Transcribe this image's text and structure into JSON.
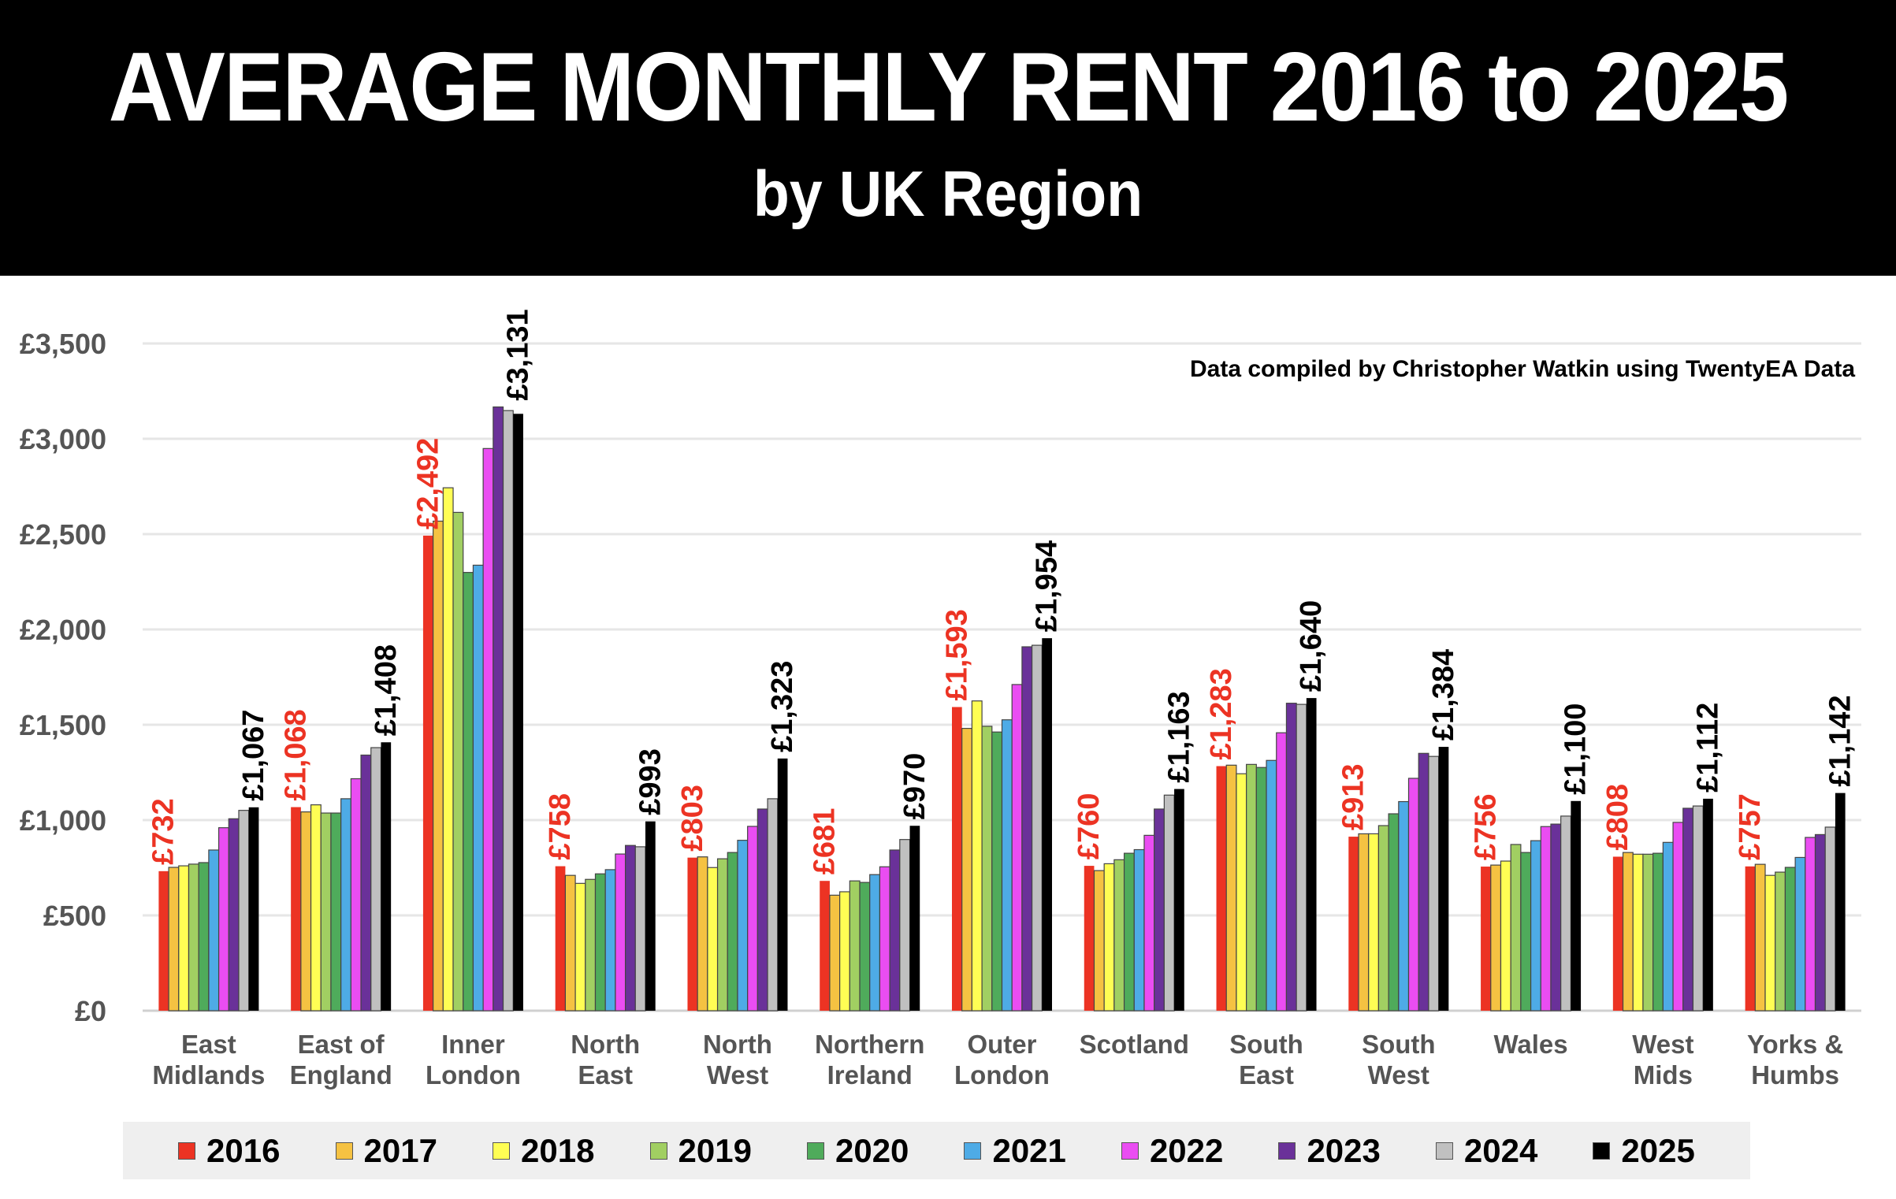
{
  "header": {
    "title": "AVERAGE MONTHLY RENT 2016 to 2025",
    "subtitle": "by UK Region"
  },
  "chart_data": {
    "type": "bar",
    "title": "AVERAGE MONTHLY RENT 2016 to 2025",
    "subtitle": "by UK Region",
    "annotation": "Data compiled by Christopher Watkin using TwentyEA Data",
    "xlabel": "",
    "ylabel": "",
    "ylim": [
      0,
      3500
    ],
    "yticks": [
      "£0",
      "£500",
      "£1,000",
      "£1,500",
      "£2,000",
      "£2,500",
      "£3,000",
      "£3,500"
    ],
    "ytick_values": [
      0,
      500,
      1000,
      1500,
      2000,
      2500,
      3000,
      3500
    ],
    "grid": true,
    "legend": "bottom",
    "categories": [
      [
        "East",
        "Midlands"
      ],
      [
        "East of",
        "England"
      ],
      [
        "Inner",
        "London"
      ],
      [
        "North",
        "East"
      ],
      [
        "North",
        "West"
      ],
      [
        "Northern",
        "Ireland"
      ],
      [
        "Outer",
        "London"
      ],
      [
        "Scotland",
        ""
      ],
      [
        "South",
        "East"
      ],
      [
        "South",
        "West"
      ],
      [
        "Wales",
        ""
      ],
      [
        "West",
        "Mids"
      ],
      [
        "Yorks &",
        "Humbs"
      ]
    ],
    "series": [
      {
        "name": "2016",
        "color": "#ec3323",
        "values": [
          732,
          1068,
          2492,
          758,
          803,
          681,
          1593,
          760,
          1283,
          913,
          756,
          808,
          757
        ],
        "labels": [
          "£732",
          "£1,068",
          "£2,492",
          "£758",
          "£803",
          "£681",
          "£1,593",
          "£760",
          "£1,283",
          "£913",
          "£756",
          "£808",
          "£757"
        ]
      },
      {
        "name": "2017",
        "color": "#f5c242",
        "values": [
          752,
          1043,
          2568,
          710,
          807,
          606,
          1481,
          735,
          1288,
          928,
          764,
          830,
          768
        ]
      },
      {
        "name": "2018",
        "color": "#fffe54",
        "values": [
          760,
          1080,
          2743,
          668,
          751,
          624,
          1625,
          771,
          1243,
          928,
          785,
          821,
          710
        ]
      },
      {
        "name": "2019",
        "color": "#a1cf62",
        "values": [
          769,
          1037,
          2614,
          689,
          797,
          681,
          1492,
          792,
          1292,
          971,
          872,
          821,
          727
        ]
      },
      {
        "name": "2020",
        "color": "#4fab5b",
        "values": [
          777,
          1037,
          2299,
          718,
          830,
          673,
          1462,
          826,
          1276,
          1033,
          830,
          826,
          752
        ]
      },
      {
        "name": "2021",
        "color": "#4eabe6",
        "values": [
          843,
          1112,
          2337,
          740,
          894,
          714,
          1526,
          845,
          1313,
          1097,
          892,
          883,
          804
        ]
      },
      {
        "name": "2022",
        "color": "#ea4df2",
        "values": [
          960,
          1217,
          2949,
          822,
          967,
          755,
          1711,
          920,
          1458,
          1219,
          966,
          988,
          909
        ]
      },
      {
        "name": "2023",
        "color": "#6a3199",
        "values": [
          1007,
          1341,
          3167,
          867,
          1058,
          843,
          1909,
          1058,
          1613,
          1350,
          979,
          1062,
          924
        ]
      },
      {
        "name": "2024",
        "color": "#c0c0c0",
        "values": [
          1051,
          1380,
          3148,
          860,
          1112,
          898,
          1917,
          1131,
          1607,
          1334,
          1021,
          1074,
          963
        ]
      },
      {
        "name": "2025",
        "color": "#000000",
        "values": [
          1067,
          1408,
          3131,
          993,
          1323,
          970,
          1954,
          1163,
          1640,
          1384,
          1100,
          1112,
          1142
        ],
        "labels": [
          "£1,067",
          "£1,408",
          "£3,131",
          "£993",
          "£1,323",
          "£970",
          "£1,954",
          "£1,163",
          "£1,640",
          "£1,384",
          "£1,100",
          "£1,112",
          "£1,142"
        ]
      }
    ]
  }
}
